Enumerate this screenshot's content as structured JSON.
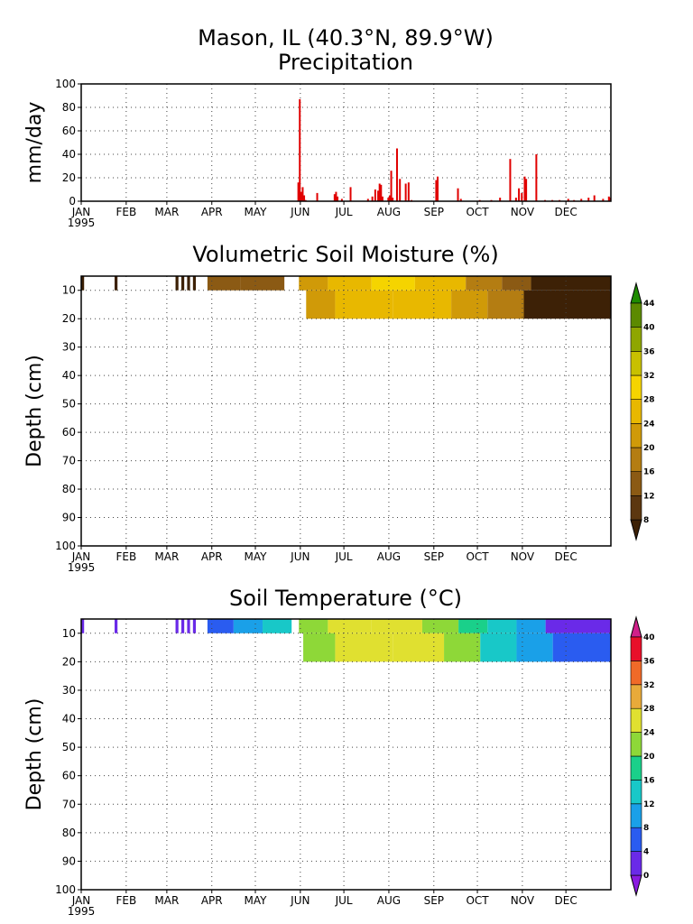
{
  "header": {
    "station": "Mason, IL   (40.3°N, 89.9°W)",
    "subtitle": "Precipitation"
  },
  "axis": {
    "months": [
      "JAN",
      "FEB",
      "MAR",
      "APR",
      "MAY",
      "JUN",
      "JUL",
      "AUG",
      "SEP",
      "OCT",
      "NOV",
      "DEC"
    ],
    "year": "1995"
  },
  "chart_data": [
    {
      "type": "bar",
      "title": "Precipitation",
      "ylabel": "mm/day",
      "xlabel": "",
      "ylim": [
        0,
        100
      ],
      "yticks": [
        "0",
        "20",
        "40",
        "60",
        "80",
        "100"
      ],
      "grid": true,
      "x_unit": "day of year 1995",
      "series": [
        {
          "values": [
            [
              150,
              16
            ],
            [
              151,
              87
            ],
            [
              152,
              8
            ],
            [
              153,
              12
            ],
            [
              154,
              5
            ],
            [
              155,
              1
            ],
            [
              163,
              7
            ],
            [
              175,
              6
            ],
            [
              176,
              8
            ],
            [
              177,
              4
            ],
            [
              180,
              2
            ],
            [
              186,
              12
            ],
            [
              198,
              2
            ],
            [
              201,
              4
            ],
            [
              203,
              10
            ],
            [
              205,
              9
            ],
            [
              206,
              15
            ],
            [
              207,
              14
            ],
            [
              208,
              4
            ],
            [
              212,
              3
            ],
            [
              213,
              5
            ],
            [
              214,
              26
            ],
            [
              215,
              3
            ],
            [
              218,
              45
            ],
            [
              220,
              19
            ],
            [
              224,
              15
            ],
            [
              226,
              16
            ],
            [
              228,
              1
            ],
            [
              245,
              18
            ],
            [
              246,
              21
            ],
            [
              260,
              11
            ],
            [
              262,
              2
            ],
            [
              275,
              1
            ],
            [
              283,
              1
            ],
            [
              289,
              3
            ],
            [
              296,
              36
            ],
            [
              300,
              3
            ],
            [
              302,
              11
            ],
            [
              304,
              7
            ],
            [
              306,
              21
            ],
            [
              307,
              19
            ],
            [
              314,
              40
            ],
            [
              320,
              1
            ],
            [
              325,
              1
            ],
            [
              330,
              1
            ],
            [
              336,
              2
            ],
            [
              340,
              1
            ],
            [
              345,
              2
            ],
            [
              350,
              3
            ],
            [
              354,
              5
            ],
            [
              360,
              2
            ],
            [
              364,
              4
            ],
            [
              365,
              3
            ]
          ]
        }
      ]
    },
    {
      "type": "heatmap",
      "title": "Volumetric Soil Moisture (%)",
      "ylabel": "Depth (cm)",
      "yticks": [
        "10",
        "20",
        "30",
        "40",
        "50",
        "60",
        "70",
        "80",
        "90",
        "100"
      ],
      "ylim": [
        100,
        5
      ],
      "colorbar_ticks": [
        "8",
        "12",
        "16",
        "20",
        "24",
        "28",
        "32",
        "36",
        "40",
        "44"
      ],
      "levels": [
        8,
        12,
        16,
        20,
        24,
        28,
        32,
        36,
        40,
        44
      ],
      "colors": [
        "#3d2106",
        "#5c3710",
        "#8b5a14",
        "#b47d12",
        "#d09a08",
        "#e8b800",
        "#f5d400",
        "#c8c000",
        "#8fa600",
        "#5c8a00",
        "#1e8c00"
      ],
      "layers": [
        {
          "depth_range": [
            5,
            10
          ],
          "segments": [
            [
              0,
              2,
              7
            ],
            [
              23,
              25,
              7
            ],
            [
              65,
              67,
              7
            ],
            [
              69,
              71,
              7
            ],
            [
              73,
              75,
              7
            ],
            [
              77,
              79,
              7
            ],
            [
              87,
              110,
              12
            ],
            [
              110,
              140,
              13
            ],
            [
              150,
              170,
              22
            ],
            [
              170,
              200,
              26
            ],
            [
              200,
              230,
              28
            ],
            [
              230,
              265,
              25
            ],
            [
              265,
              290,
              18
            ],
            [
              290,
              310,
              12
            ],
            [
              310,
              365,
              7
            ]
          ]
        },
        {
          "depth_range": [
            10,
            20
          ],
          "segments": [
            [
              155,
              175,
              21
            ],
            [
              175,
              215,
              26
            ],
            [
              215,
              255,
              27
            ],
            [
              255,
              280,
              22
            ],
            [
              280,
              305,
              17
            ],
            [
              305,
              365,
              7
            ]
          ]
        }
      ]
    },
    {
      "type": "heatmap",
      "title": "Soil Temperature (°C)",
      "ylabel": "Depth (cm)",
      "yticks": [
        "10",
        "20",
        "30",
        "40",
        "50",
        "60",
        "70",
        "80",
        "90",
        "100"
      ],
      "ylim": [
        100,
        5
      ],
      "colorbar_ticks": [
        "0",
        "4",
        "8",
        "12",
        "16",
        "20",
        "24",
        "28",
        "32",
        "36",
        "40"
      ],
      "levels": [
        0,
        4,
        8,
        12,
        16,
        20,
        24,
        28,
        32,
        36,
        40
      ],
      "colors": [
        "#8a1ae0",
        "#6a2ae8",
        "#2a5cf0",
        "#1aa0e8",
        "#18c8c8",
        "#1ad08a",
        "#8ed838",
        "#e0e030",
        "#e8aa3a",
        "#f06a28",
        "#e8102a",
        "#d0208a"
      ],
      "layers": [
        {
          "depth_range": [
            5,
            10
          ],
          "segments": [
            [
              0,
              2,
              1
            ],
            [
              23,
              25,
              1
            ],
            [
              65,
              67,
              2
            ],
            [
              69,
              71,
              2
            ],
            [
              73,
              75,
              2
            ],
            [
              77,
              79,
              2
            ],
            [
              87,
              105,
              7
            ],
            [
              105,
              125,
              10
            ],
            [
              125,
              145,
              13
            ],
            [
              150,
              170,
              21
            ],
            [
              170,
              200,
              25
            ],
            [
              200,
              235,
              26
            ],
            [
              235,
              260,
              23
            ],
            [
              260,
              280,
              18
            ],
            [
              280,
              300,
              14
            ],
            [
              300,
              320,
              9
            ],
            [
              320,
              365,
              3
            ]
          ]
        },
        {
          "depth_range": [
            10,
            20
          ],
          "segments": [
            [
              153,
              175,
              21
            ],
            [
              175,
              215,
              24
            ],
            [
              215,
              250,
              25
            ],
            [
              250,
              275,
              20
            ],
            [
              275,
              300,
              15
            ],
            [
              300,
              325,
              10
            ],
            [
              325,
              365,
              4
            ]
          ]
        }
      ]
    }
  ]
}
